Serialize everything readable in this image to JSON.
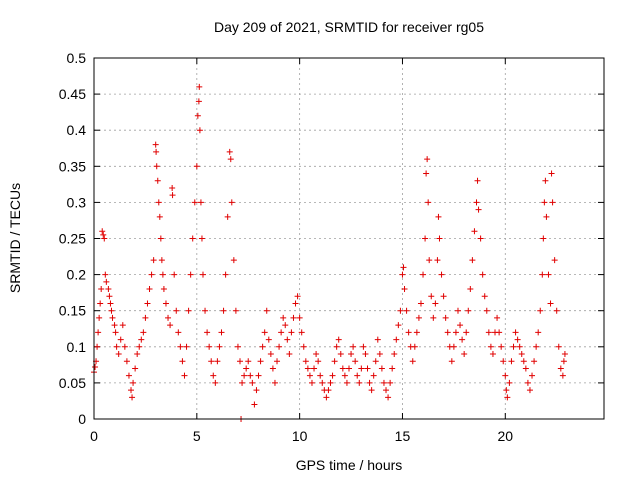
{
  "chart_data": {
    "type": "scatter",
    "title": "Day 209 of 2021, SRMTID for receiver rg05",
    "xlabel": "GPS time / hours",
    "ylabel": "SRMTID / TECUs",
    "xlim": [
      0,
      24.8
    ],
    "ylim": [
      0,
      0.5
    ],
    "xticks": [
      0,
      5,
      10,
      15,
      20
    ],
    "xtick_labels": [
      "0",
      "5",
      "10",
      "15",
      "20"
    ],
    "yticks": [
      0,
      0.05,
      0.1,
      0.15,
      0.2,
      0.25,
      0.3,
      0.35,
      0.4,
      0.45,
      0.5
    ],
    "ytick_labels": [
      "0",
      "0.05",
      "0.1",
      "0.15",
      "0.2",
      "0.25",
      "0.3",
      "0.35",
      "0.4",
      "0.45",
      "0.5"
    ],
    "grid": true,
    "marker": "+",
    "color": "#e00000",
    "series": [
      {
        "name": "SRMTID",
        "points": [
          [
            0.0,
            0.065
          ],
          [
            0.05,
            0.072
          ],
          [
            0.1,
            0.08
          ],
          [
            0.15,
            0.1
          ],
          [
            0.2,
            0.12
          ],
          [
            0.25,
            0.14
          ],
          [
            0.3,
            0.16
          ],
          [
            0.35,
            0.18
          ],
          [
            0.4,
            0.26
          ],
          [
            0.45,
            0.255
          ],
          [
            0.5,
            0.25
          ],
          [
            0.55,
            0.2
          ],
          [
            0.6,
            0.19
          ],
          [
            0.7,
            0.18
          ],
          [
            0.75,
            0.17
          ],
          [
            0.8,
            0.16
          ],
          [
            0.85,
            0.15
          ],
          [
            0.9,
            0.14
          ],
          [
            1.0,
            0.13
          ],
          [
            1.05,
            0.12
          ],
          [
            1.1,
            0.1
          ],
          [
            1.2,
            0.09
          ],
          [
            1.3,
            0.11
          ],
          [
            1.4,
            0.13
          ],
          [
            1.5,
            0.1
          ],
          [
            1.6,
            0.08
          ],
          [
            1.7,
            0.06
          ],
          [
            1.8,
            0.04
          ],
          [
            1.85,
            0.03
          ],
          [
            1.9,
            0.05
          ],
          [
            2.0,
            0.07
          ],
          [
            2.1,
            0.09
          ],
          [
            2.2,
            0.1
          ],
          [
            2.3,
            0.11
          ],
          [
            2.4,
            0.12
          ],
          [
            2.5,
            0.14
          ],
          [
            2.6,
            0.16
          ],
          [
            2.7,
            0.18
          ],
          [
            2.8,
            0.2
          ],
          [
            2.9,
            0.22
          ],
          [
            3.0,
            0.38
          ],
          [
            3.02,
            0.37
          ],
          [
            3.05,
            0.35
          ],
          [
            3.1,
            0.33
          ],
          [
            3.15,
            0.3
          ],
          [
            3.2,
            0.28
          ],
          [
            3.25,
            0.25
          ],
          [
            3.3,
            0.22
          ],
          [
            3.35,
            0.2
          ],
          [
            3.4,
            0.18
          ],
          [
            3.5,
            0.16
          ],
          [
            3.6,
            0.14
          ],
          [
            3.7,
            0.13
          ],
          [
            3.8,
            0.32
          ],
          [
            3.82,
            0.31
          ],
          [
            3.9,
            0.2
          ],
          [
            4.0,
            0.15
          ],
          [
            4.1,
            0.12
          ],
          [
            4.2,
            0.1
          ],
          [
            4.3,
            0.08
          ],
          [
            4.4,
            0.06
          ],
          [
            4.5,
            0.1
          ],
          [
            4.6,
            0.15
          ],
          [
            4.7,
            0.2
          ],
          [
            4.8,
            0.25
          ],
          [
            4.9,
            0.3
          ],
          [
            5.0,
            0.35
          ],
          [
            5.05,
            0.42
          ],
          [
            5.1,
            0.44
          ],
          [
            5.12,
            0.46
          ],
          [
            5.15,
            0.4
          ],
          [
            5.2,
            0.3
          ],
          [
            5.25,
            0.25
          ],
          [
            5.3,
            0.2
          ],
          [
            5.4,
            0.15
          ],
          [
            5.5,
            0.12
          ],
          [
            5.6,
            0.1
          ],
          [
            5.7,
            0.08
          ],
          [
            5.8,
            0.06
          ],
          [
            5.9,
            0.05
          ],
          [
            6.0,
            0.08
          ],
          [
            6.1,
            0.1
          ],
          [
            6.2,
            0.12
          ],
          [
            6.3,
            0.15
          ],
          [
            6.4,
            0.2
          ],
          [
            6.5,
            0.28
          ],
          [
            6.6,
            0.37
          ],
          [
            6.65,
            0.36
          ],
          [
            6.7,
            0.3
          ],
          [
            6.8,
            0.22
          ],
          [
            6.9,
            0.15
          ],
          [
            7.0,
            0.1
          ],
          [
            7.1,
            0.08
          ],
          [
            7.15,
            0.0
          ],
          [
            7.2,
            0.05
          ],
          [
            7.3,
            0.06
          ],
          [
            7.4,
            0.07
          ],
          [
            7.5,
            0.08
          ],
          [
            7.6,
            0.06
          ],
          [
            7.7,
            0.05
          ],
          [
            7.8,
            0.02
          ],
          [
            7.9,
            0.04
          ],
          [
            8.0,
            0.06
          ],
          [
            8.1,
            0.08
          ],
          [
            8.2,
            0.1
          ],
          [
            8.3,
            0.12
          ],
          [
            8.4,
            0.15
          ],
          [
            8.5,
            0.11
          ],
          [
            8.6,
            0.09
          ],
          [
            8.7,
            0.07
          ],
          [
            8.8,
            0.05
          ],
          [
            8.9,
            0.08
          ],
          [
            9.0,
            0.1
          ],
          [
            9.1,
            0.12
          ],
          [
            9.2,
            0.14
          ],
          [
            9.3,
            0.13
          ],
          [
            9.4,
            0.11
          ],
          [
            9.5,
            0.09
          ],
          [
            9.6,
            0.12
          ],
          [
            9.7,
            0.14
          ],
          [
            9.8,
            0.16
          ],
          [
            9.9,
            0.17
          ],
          [
            10.0,
            0.14
          ],
          [
            10.1,
            0.12
          ],
          [
            10.2,
            0.1
          ],
          [
            10.3,
            0.08
          ],
          [
            10.4,
            0.07
          ],
          [
            10.5,
            0.06
          ],
          [
            10.6,
            0.05
          ],
          [
            10.7,
            0.07
          ],
          [
            10.8,
            0.09
          ],
          [
            10.9,
            0.08
          ],
          [
            11.0,
            0.06
          ],
          [
            11.1,
            0.05
          ],
          [
            11.2,
            0.04
          ],
          [
            11.3,
            0.03
          ],
          [
            11.4,
            0.04
          ],
          [
            11.5,
            0.05
          ],
          [
            11.6,
            0.06
          ],
          [
            11.7,
            0.08
          ],
          [
            11.8,
            0.1
          ],
          [
            11.9,
            0.11
          ],
          [
            12.0,
            0.09
          ],
          [
            12.1,
            0.07
          ],
          [
            12.2,
            0.06
          ],
          [
            12.3,
            0.05
          ],
          [
            12.4,
            0.07
          ],
          [
            12.5,
            0.09
          ],
          [
            12.6,
            0.1
          ],
          [
            12.7,
            0.08
          ],
          [
            12.8,
            0.06
          ],
          [
            12.9,
            0.05
          ],
          [
            13.0,
            0.07
          ],
          [
            13.1,
            0.1
          ],
          [
            13.2,
            0.09
          ],
          [
            13.3,
            0.07
          ],
          [
            13.4,
            0.05
          ],
          [
            13.5,
            0.04
          ],
          [
            13.6,
            0.06
          ],
          [
            13.7,
            0.08
          ],
          [
            13.8,
            0.11
          ],
          [
            13.9,
            0.09
          ],
          [
            14.0,
            0.07
          ],
          [
            14.1,
            0.05
          ],
          [
            14.2,
            0.04
          ],
          [
            14.3,
            0.03
          ],
          [
            14.4,
            0.05
          ],
          [
            14.5,
            0.07
          ],
          [
            14.6,
            0.09
          ],
          [
            14.7,
            0.11
          ],
          [
            14.8,
            0.13
          ],
          [
            14.9,
            0.15
          ],
          [
            15.0,
            0.2
          ],
          [
            15.05,
            0.21
          ],
          [
            15.1,
            0.18
          ],
          [
            15.2,
            0.15
          ],
          [
            15.3,
            0.12
          ],
          [
            15.4,
            0.1
          ],
          [
            15.5,
            0.08
          ],
          [
            15.6,
            0.1
          ],
          [
            15.7,
            0.12
          ],
          [
            15.8,
            0.14
          ],
          [
            15.9,
            0.16
          ],
          [
            16.0,
            0.2
          ],
          [
            16.1,
            0.25
          ],
          [
            16.15,
            0.34
          ],
          [
            16.2,
            0.36
          ],
          [
            16.25,
            0.3
          ],
          [
            16.3,
            0.22
          ],
          [
            16.4,
            0.17
          ],
          [
            16.5,
            0.14
          ],
          [
            16.6,
            0.16
          ],
          [
            16.7,
            0.22
          ],
          [
            16.75,
            0.28
          ],
          [
            16.8,
            0.25
          ],
          [
            16.9,
            0.2
          ],
          [
            17.0,
            0.17
          ],
          [
            17.1,
            0.14
          ],
          [
            17.2,
            0.12
          ],
          [
            17.3,
            0.1
          ],
          [
            17.4,
            0.08
          ],
          [
            17.5,
            0.1
          ],
          [
            17.6,
            0.12
          ],
          [
            17.7,
            0.15
          ],
          [
            17.8,
            0.13
          ],
          [
            17.9,
            0.11
          ],
          [
            18.0,
            0.09
          ],
          [
            18.1,
            0.12
          ],
          [
            18.2,
            0.15
          ],
          [
            18.3,
            0.18
          ],
          [
            18.4,
            0.22
          ],
          [
            18.5,
            0.26
          ],
          [
            18.6,
            0.3
          ],
          [
            18.65,
            0.33
          ],
          [
            18.7,
            0.29
          ],
          [
            18.8,
            0.25
          ],
          [
            18.9,
            0.2
          ],
          [
            19.0,
            0.17
          ],
          [
            19.1,
            0.15
          ],
          [
            19.2,
            0.12
          ],
          [
            19.3,
            0.1
          ],
          [
            19.4,
            0.09
          ],
          [
            19.5,
            0.12
          ],
          [
            19.6,
            0.14
          ],
          [
            19.7,
            0.12
          ],
          [
            19.8,
            0.1
          ],
          [
            19.9,
            0.08
          ],
          [
            20.0,
            0.06
          ],
          [
            20.05,
            0.04
          ],
          [
            20.1,
            0.03
          ],
          [
            20.2,
            0.05
          ],
          [
            20.3,
            0.08
          ],
          [
            20.4,
            0.1
          ],
          [
            20.5,
            0.12
          ],
          [
            20.6,
            0.11
          ],
          [
            20.7,
            0.1
          ],
          [
            20.8,
            0.09
          ],
          [
            20.9,
            0.08
          ],
          [
            21.0,
            0.07
          ],
          [
            21.1,
            0.05
          ],
          [
            21.2,
            0.04
          ],
          [
            21.3,
            0.06
          ],
          [
            21.4,
            0.08
          ],
          [
            21.5,
            0.1
          ],
          [
            21.6,
            0.12
          ],
          [
            21.7,
            0.15
          ],
          [
            21.8,
            0.2
          ],
          [
            21.85,
            0.25
          ],
          [
            21.9,
            0.3
          ],
          [
            21.95,
            0.33
          ],
          [
            22.0,
            0.28
          ],
          [
            22.1,
            0.2
          ],
          [
            22.2,
            0.16
          ],
          [
            22.25,
            0.34
          ],
          [
            22.3,
            0.3
          ],
          [
            22.4,
            0.22
          ],
          [
            22.5,
            0.15
          ],
          [
            22.6,
            0.1
          ],
          [
            22.7,
            0.07
          ],
          [
            22.8,
            0.06
          ],
          [
            22.85,
            0.08
          ],
          [
            22.9,
            0.09
          ]
        ]
      }
    ]
  }
}
